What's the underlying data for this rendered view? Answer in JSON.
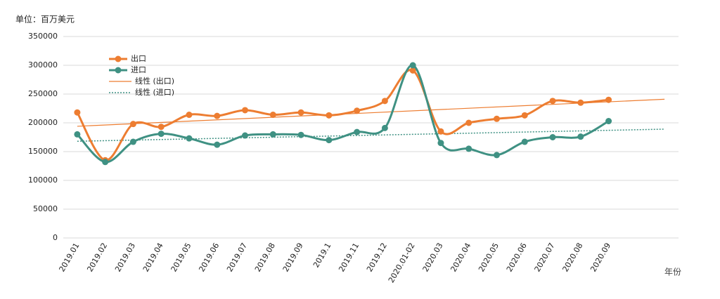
{
  "chart_data": {
    "type": "line",
    "unit_label": "单位：百万美元",
    "x_label": "年份",
    "categories": [
      "2019.01",
      "2019.02",
      "2019.03",
      "2019.04",
      "2019.05",
      "2019.06",
      "2019.07",
      "2019.08",
      "2019.09",
      "2019.1",
      "2019.11",
      "2019.12",
      "2020.01-02",
      "2020.03",
      "2020.04",
      "2020.05",
      "2020.06",
      "2020.07",
      "2020.08",
      "2020.09"
    ],
    "series": [
      {
        "name": "出口",
        "color": "#ed7d31",
        "values": [
          218000,
          135000,
          198000,
          193000,
          214000,
          212000,
          222000,
          214000,
          218000,
          213000,
          221000,
          238000,
          291000,
          185000,
          200000,
          207000,
          213000,
          238000,
          235000,
          240000
        ]
      },
      {
        "name": "进口",
        "color": "#3f9183",
        "values": [
          180000,
          132000,
          167000,
          181000,
          173000,
          162000,
          178000,
          180000,
          179000,
          170000,
          184000,
          191000,
          300000,
          165000,
          155000,
          144000,
          167000,
          175000,
          176000,
          203000
        ]
      }
    ],
    "trendlines": [
      {
        "name": "线性 (出口)",
        "color": "#ed7d31",
        "dash": false,
        "values": [
          194000,
          241000
        ]
      },
      {
        "name": "线性 (进口)",
        "color": "#3f9183",
        "dash": true,
        "values": [
          168000,
          189000
        ]
      }
    ],
    "ylim": [
      0,
      350000
    ],
    "yticks": [
      0,
      50000,
      100000,
      150000,
      200000,
      250000,
      300000,
      350000
    ],
    "grid": true
  }
}
